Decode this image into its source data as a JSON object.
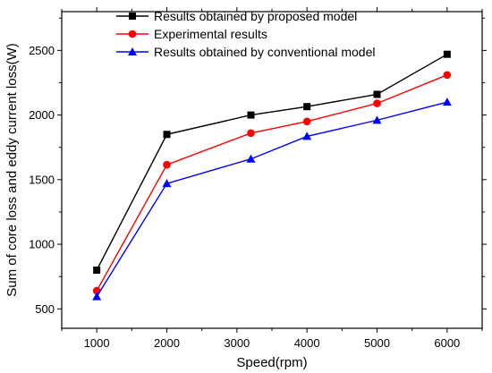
{
  "chart_data": {
    "type": "line",
    "title": "",
    "xlabel": "Speed(rpm)",
    "ylabel": "Sum of core loss and eddy current loss(W)",
    "xlim": [
      500,
      6500
    ],
    "ylim": [
      350,
      2800
    ],
    "x_ticks": [
      1000,
      2000,
      3000,
      4000,
      5000,
      6000
    ],
    "y_ticks": [
      500,
      1000,
      1500,
      2000,
      2500
    ],
    "x": [
      1000,
      2000,
      3200,
      4000,
      5000,
      6000
    ],
    "grid": false,
    "legend_position": "top-center",
    "series": [
      {
        "name": "Results obtained by proposed model",
        "values": [
          800,
          1850,
          2000,
          2065,
          2160,
          2470
        ],
        "color": "#000000",
        "marker": "square"
      },
      {
        "name": "Experimental results",
        "values": [
          640,
          1615,
          1860,
          1950,
          2090,
          2310
        ],
        "color": "#ff0000",
        "marker": "circle"
      },
      {
        "name": "Results obtained by conventional model",
        "values": [
          595,
          1470,
          1660,
          1835,
          1960,
          2100
        ],
        "color": "#0000ff",
        "marker": "triangle"
      }
    ]
  }
}
